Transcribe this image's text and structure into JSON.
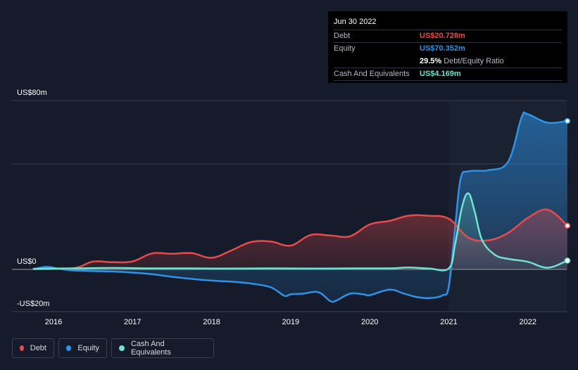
{
  "tooltip": {
    "date": "Jun 30 2022",
    "rows": {
      "debt": {
        "label": "Debt",
        "value": "US$20.728m",
        "color": "#e84b4b"
      },
      "equity": {
        "label": "Equity",
        "value": "US$70.352m",
        "color": "#2e93e8"
      },
      "ratio": {
        "value": "29.5%",
        "label": "Debt/Equity Ratio"
      },
      "cash": {
        "label": "Cash And Equivalents",
        "value": "US$4.169m",
        "color": "#6fe3cf"
      }
    }
  },
  "legend": {
    "debt": {
      "label": "Debt",
      "color": "#e84b4b"
    },
    "equity": {
      "label": "Equity",
      "color": "#2e93e8"
    },
    "cash": {
      "label": "Cash And Equivalents",
      "color": "#6fe3cf"
    }
  },
  "chart_data": {
    "type": "area",
    "ylim": [
      -20,
      80
    ],
    "y_tick_labels": [
      {
        "value": 80,
        "label": "US$80m"
      },
      {
        "value": 0,
        "label": "US$0"
      },
      {
        "value": -20,
        "label": "-US$20m"
      }
    ],
    "x_tick_labels": [
      {
        "value": 2016,
        "label": "2016"
      },
      {
        "value": 2017,
        "label": "2017"
      },
      {
        "value": 2018,
        "label": "2018"
      },
      {
        "value": 2019,
        "label": "2019"
      },
      {
        "value": 2020,
        "label": "2020"
      },
      {
        "value": 2021,
        "label": "2021"
      },
      {
        "value": 2022,
        "label": "2022"
      }
    ],
    "xlim": [
      2015.5,
      2022.5
    ],
    "gridlines": [
      80,
      50,
      0
    ],
    "series": [
      {
        "name": "Equity",
        "color": "#2e93e8",
        "points": [
          [
            2015.75,
            0.2
          ],
          [
            2015.92,
            1.2
          ],
          [
            2016.08,
            0.2
          ],
          [
            2016.25,
            -0.5
          ],
          [
            2016.5,
            -0.8
          ],
          [
            2016.75,
            -1
          ],
          [
            2017.0,
            -1.5
          ],
          [
            2017.25,
            -2.3
          ],
          [
            2017.5,
            -3.5
          ],
          [
            2017.75,
            -4.5
          ],
          [
            2018.0,
            -5.3
          ],
          [
            2018.25,
            -5.8
          ],
          [
            2018.5,
            -6.7
          ],
          [
            2018.75,
            -8.5
          ],
          [
            2018.92,
            -12.5
          ],
          [
            2019.0,
            -11.8
          ],
          [
            2019.15,
            -11.5
          ],
          [
            2019.35,
            -10.8
          ],
          [
            2019.5,
            -15
          ],
          [
            2019.58,
            -14.7
          ],
          [
            2019.75,
            -11.5
          ],
          [
            2019.92,
            -11.8
          ],
          [
            2020.0,
            -12.2
          ],
          [
            2020.25,
            -9.6
          ],
          [
            2020.42,
            -11.3
          ],
          [
            2020.58,
            -13
          ],
          [
            2020.75,
            -13.6
          ],
          [
            2020.92,
            -12.3
          ],
          [
            2021.0,
            -8
          ],
          [
            2021.08,
            20
          ],
          [
            2021.15,
            43
          ],
          [
            2021.25,
            46.5
          ],
          [
            2021.5,
            47
          ],
          [
            2021.75,
            51
          ],
          [
            2021.92,
            72
          ],
          [
            2022.0,
            73.5
          ],
          [
            2022.25,
            69.5
          ],
          [
            2022.5,
            70.352
          ]
        ]
      },
      {
        "name": "Debt",
        "color": "#e84b4b",
        "points": [
          [
            2015.75,
            0.1
          ],
          [
            2016.25,
            0.6
          ],
          [
            2016.5,
            3.7
          ],
          [
            2016.75,
            3.4
          ],
          [
            2017.0,
            3.8
          ],
          [
            2017.25,
            7.6
          ],
          [
            2017.5,
            7.4
          ],
          [
            2017.75,
            7.7
          ],
          [
            2018.0,
            5.5
          ],
          [
            2018.25,
            9
          ],
          [
            2018.5,
            13
          ],
          [
            2018.75,
            13.2
          ],
          [
            2019.0,
            11.3
          ],
          [
            2019.25,
            16.3
          ],
          [
            2019.5,
            16.1
          ],
          [
            2019.75,
            15.7
          ],
          [
            2020.0,
            21.3
          ],
          [
            2020.25,
            23
          ],
          [
            2020.5,
            25.5
          ],
          [
            2020.75,
            25.4
          ],
          [
            2021.0,
            24
          ],
          [
            2021.25,
            15
          ],
          [
            2021.5,
            13.8
          ],
          [
            2021.75,
            17.3
          ],
          [
            2022.0,
            24.4
          ],
          [
            2022.25,
            28.3
          ],
          [
            2022.5,
            20.728
          ]
        ]
      },
      {
        "name": "Cash And Equivalents",
        "color": "#6fe3cf",
        "points": [
          [
            2015.75,
            0.3
          ],
          [
            2016.25,
            0.5
          ],
          [
            2016.75,
            0.7
          ],
          [
            2017.25,
            0.5
          ],
          [
            2017.75,
            0.5
          ],
          [
            2018.25,
            0.4
          ],
          [
            2018.75,
            0.5
          ],
          [
            2019.25,
            0.4
          ],
          [
            2019.75,
            0.5
          ],
          [
            2020.25,
            0.5
          ],
          [
            2020.5,
            0.9
          ],
          [
            2020.75,
            0.4
          ],
          [
            2021.0,
            0.5
          ],
          [
            2021.08,
            12
          ],
          [
            2021.17,
            30
          ],
          [
            2021.25,
            36
          ],
          [
            2021.33,
            27
          ],
          [
            2021.42,
            14
          ],
          [
            2021.58,
            7
          ],
          [
            2021.75,
            5
          ],
          [
            2022.0,
            3.6
          ],
          [
            2022.25,
            0.8
          ],
          [
            2022.5,
            4.169
          ]
        ]
      }
    ]
  }
}
